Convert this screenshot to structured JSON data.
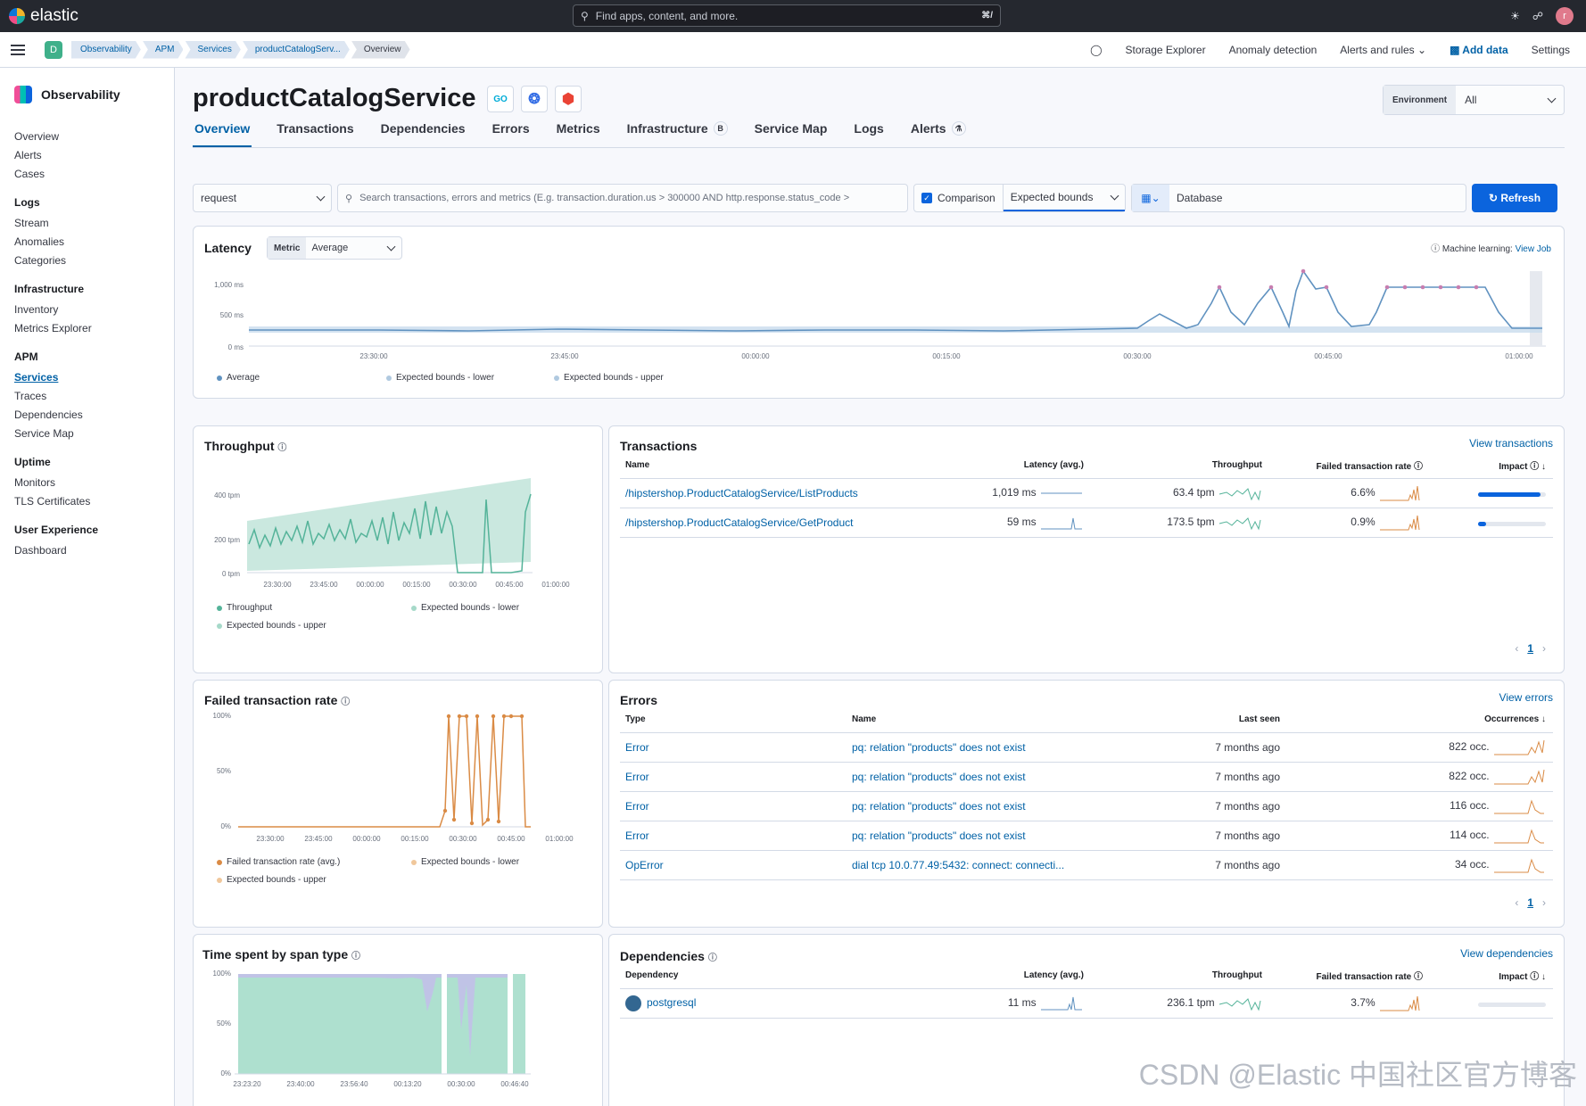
{
  "topbar": {
    "brand": "elastic",
    "search_placeholder": "Find apps, content, and more.",
    "search_shortcut": "⌘/",
    "avatar_initial": "r"
  },
  "breadcrumbs": [
    "Observability",
    "APM",
    "Services",
    "productCatalogServ...",
    "Overview"
  ],
  "space_initial": "D",
  "subnav": {
    "storage": "Storage Explorer",
    "anomaly": "Anomaly detection",
    "alerts": "Alerts and rules",
    "add_data": "Add data",
    "settings": "Settings"
  },
  "sidebar": {
    "title": "Observability",
    "top": [
      "Overview",
      "Alerts",
      "Cases"
    ],
    "groups": [
      {
        "head": "Logs",
        "items": [
          "Stream",
          "Anomalies",
          "Categories"
        ]
      },
      {
        "head": "Infrastructure",
        "items": [
          "Inventory",
          "Metrics Explorer"
        ]
      },
      {
        "head": "APM",
        "items": [
          "Services",
          "Traces",
          "Dependencies",
          "Service Map"
        ]
      },
      {
        "head": "Uptime",
        "items": [
          "Monitors",
          "TLS Certificates"
        ]
      },
      {
        "head": "User Experience",
        "items": [
          "Dashboard"
        ]
      }
    ]
  },
  "page": {
    "title": "productCatalogService",
    "lang_icon": "GO",
    "environment_label": "Environment",
    "environment_value": "All"
  },
  "tabs": [
    "Overview",
    "Transactions",
    "Dependencies",
    "Errors",
    "Metrics",
    "Infrastructure",
    "Service Map",
    "Logs",
    "Alerts"
  ],
  "tab_badges": {
    "infrastructure": "B",
    "alerts": "⚗"
  },
  "filters": {
    "transaction_type": "request",
    "search_placeholder": "Search transactions, errors and metrics (E.g. transaction.duration.us > 300000 AND http.response.status_code >",
    "comparison": "Comparison",
    "comparison_value": "Expected bounds",
    "date": "Database",
    "refresh": "Refresh"
  },
  "latency": {
    "title": "Latency",
    "metric_label": "Metric",
    "metric_value": "Average",
    "ml_prefix": "Machine learning:",
    "ml_link": "View Job",
    "legend": [
      "Average",
      "Expected bounds - lower",
      "Expected bounds - upper"
    ],
    "yticks": [
      "1,000 ms",
      "500 ms",
      "0 ms"
    ],
    "xticks": [
      "23:30:00",
      "23:45:00",
      "00:00:00",
      "00:15:00",
      "00:30:00",
      "00:45:00",
      "01:00:00"
    ]
  },
  "throughput": {
    "title": "Throughput",
    "yticks": [
      "400 tpm",
      "200 tpm",
      "0 tpm"
    ],
    "xticks": [
      "23:30:00",
      "23:45:00",
      "00:00:00",
      "00:15:00",
      "00:30:00",
      "00:45:00",
      "01:00:00"
    ],
    "legend": [
      "Throughput",
      "Expected bounds - lower",
      "Expected bounds - upper"
    ]
  },
  "transactions": {
    "title": "Transactions",
    "link": "View transactions",
    "headers": [
      "Name",
      "Latency (avg.)",
      "Throughput",
      "Failed transaction rate",
      "Impact"
    ],
    "rows": [
      {
        "name": "/hipstershop.ProductCatalogService/ListProducts",
        "latency": "1,019 ms",
        "throughput": "63.4 tpm",
        "failed": "6.6%",
        "impact": 0.92
      },
      {
        "name": "/hipstershop.ProductCatalogService/GetProduct",
        "latency": "59 ms",
        "throughput": "173.5 tpm",
        "failed": "0.9%",
        "impact": 0.12
      }
    ],
    "page": "1"
  },
  "failed_rate": {
    "title": "Failed transaction rate",
    "yticks": [
      "100%",
      "50%",
      "0%"
    ],
    "xticks": [
      "23:30:00",
      "23:45:00",
      "00:00:00",
      "00:15:00",
      "00:30:00",
      "00:45:00",
      "01:00:00"
    ],
    "legend": [
      "Failed transaction rate (avg.)",
      "Expected bounds - lower",
      "Expected bounds - upper"
    ]
  },
  "errors": {
    "title": "Errors",
    "link": "View errors",
    "headers": [
      "Type",
      "Name",
      "Last seen",
      "Occurrences"
    ],
    "rows": [
      {
        "type": "Error",
        "name": "pq: relation \"products\" does not exist",
        "last_seen": "7 months ago",
        "occ": "822 occ."
      },
      {
        "type": "Error",
        "name": "pq: relation \"products\" does not exist",
        "last_seen": "7 months ago",
        "occ": "822 occ."
      },
      {
        "type": "Error",
        "name": "pq: relation \"products\" does not exist",
        "last_seen": "7 months ago",
        "occ": "116 occ."
      },
      {
        "type": "Error",
        "name": "pq: relation \"products\" does not exist",
        "last_seen": "7 months ago",
        "occ": "114 occ."
      },
      {
        "type": "OpError",
        "name": "dial tcp 10.0.77.49:5432: connect: connecti...",
        "last_seen": "7 months ago",
        "occ": "34 occ."
      }
    ],
    "page": "1"
  },
  "span_type": {
    "title": "Time spent by span type",
    "yticks": [
      "100%",
      "50%",
      "0%"
    ],
    "xticks": [
      "23:23:20",
      "23:40:00",
      "23:56:40",
      "00:13:20",
      "00:30:00",
      "00:46:40"
    ]
  },
  "dependencies": {
    "title": "Dependencies",
    "link": "View dependencies",
    "headers": [
      "Dependency",
      "Latency (avg.)",
      "Throughput",
      "Failed transaction rate",
      "Impact"
    ],
    "rows": [
      {
        "name": "postgresql",
        "latency": "11 ms",
        "throughput": "236.1 tpm",
        "failed": "3.7%",
        "impact": 0.0
      }
    ]
  },
  "watermark": "CSDN @Elastic 中国社区官方博客",
  "colors": {
    "accent": "#0061a6",
    "throughput": "#54b399",
    "failed": "#da8b45",
    "bounds": "#a6d9c9",
    "latency": "#6092c0"
  }
}
